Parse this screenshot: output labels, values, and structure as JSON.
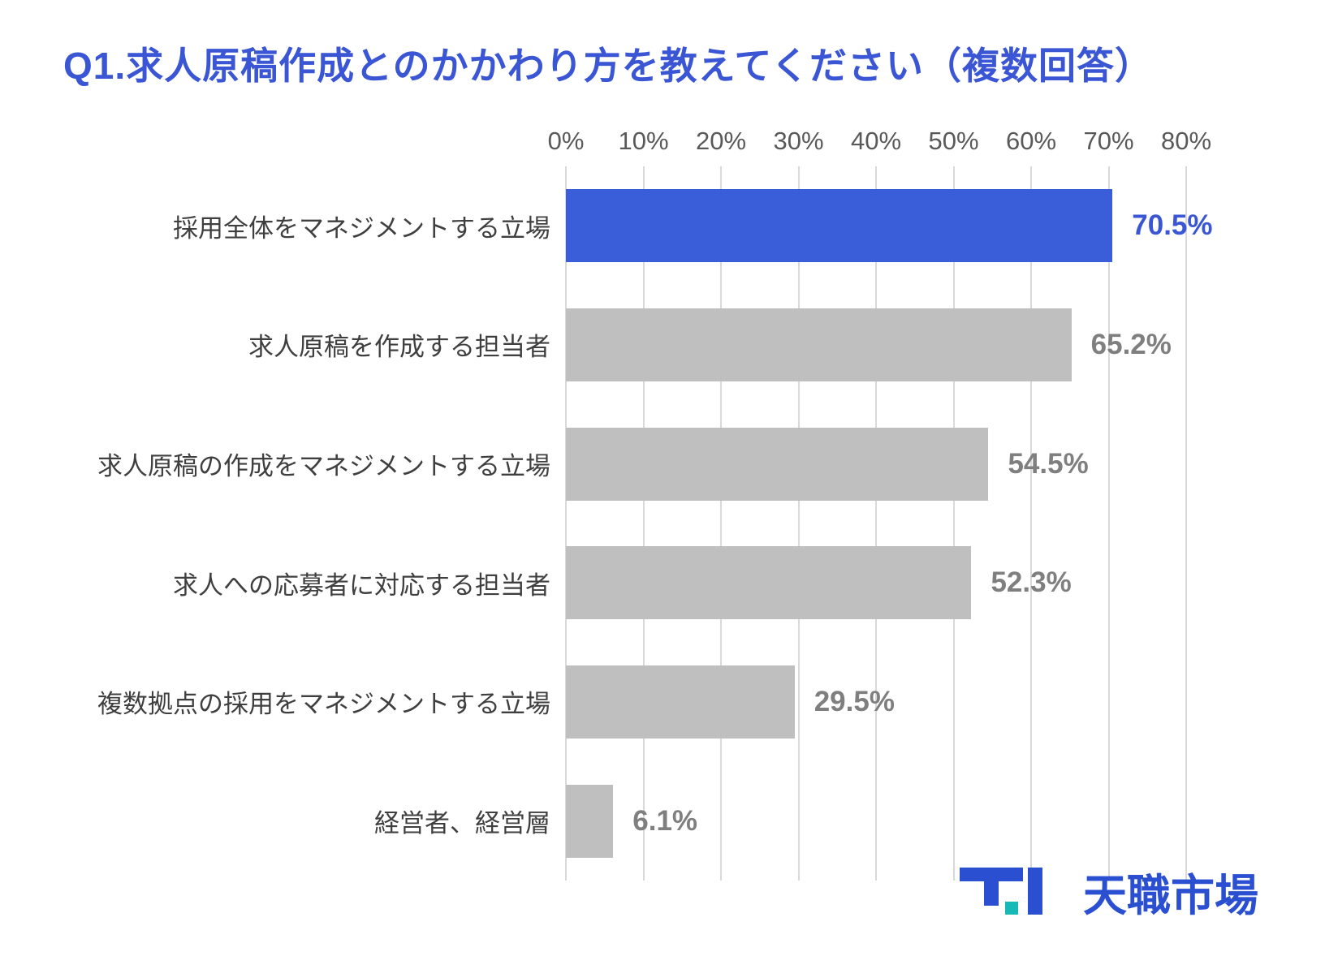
{
  "title": "Q1.求人原稿作成とのかかわり方を教えてください（複数回答）",
  "colors": {
    "title": "#3a56d4",
    "bar_highlight": "#3a5dd9",
    "bar_default": "#bfbfbf",
    "value_highlight": "#3a56d4",
    "value_default": "#7f7f7f",
    "axis_text": "#595959",
    "category_text": "#3f3f3f",
    "gridline": "#d9d9d9"
  },
  "chart_data": {
    "type": "bar",
    "orientation": "horizontal",
    "title": "Q1.求人原稿作成とのかかわり方を教えてください（複数回答）",
    "categories": [
      "採用全体をマネジメントする立場",
      "求人原稿を作成する担当者",
      "求人原稿の作成をマネジメントする立場",
      "求人への応募者に対応する担当者",
      "複数拠点の採用をマネジメントする立場",
      "経営者、経営層"
    ],
    "values": [
      70.5,
      65.2,
      54.5,
      52.3,
      29.5,
      6.1
    ],
    "value_labels": [
      "70.5%",
      "65.2%",
      "54.5%",
      "52.3%",
      "29.5%",
      "6.1%"
    ],
    "highlight_index": 0,
    "xlim": [
      0,
      80
    ],
    "x_ticks": [
      "0%",
      "10%",
      "20%",
      "30%",
      "40%",
      "50%",
      "60%",
      "70%",
      "80%"
    ],
    "grid": true,
    "legend": "none"
  },
  "logo": {
    "text": "天職市場"
  }
}
